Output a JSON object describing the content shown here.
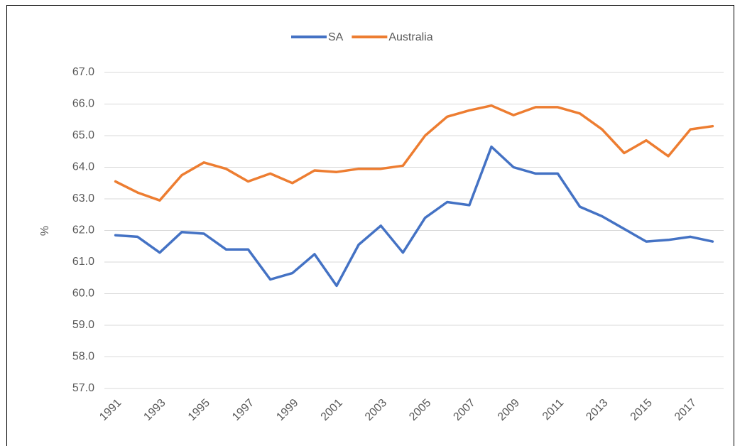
{
  "chart_data": {
    "type": "line",
    "categories": [
      "1991",
      null,
      "1993",
      null,
      "1995",
      null,
      "1997",
      null,
      "1999",
      null,
      "2001",
      null,
      "2003",
      null,
      "2005",
      null,
      "2007",
      null,
      "2009",
      null,
      "2011",
      null,
      "2013",
      null,
      "2015",
      null,
      "2017",
      null
    ],
    "series": [
      {
        "name": "SA",
        "color": "#4472c4",
        "values": [
          61.85,
          61.8,
          61.3,
          61.95,
          61.9,
          61.4,
          61.4,
          60.45,
          60.65,
          61.25,
          60.25,
          61.55,
          62.15,
          61.3,
          62.4,
          62.9,
          62.8,
          64.65,
          64.0,
          63.8,
          63.8,
          62.75,
          62.45,
          62.05,
          61.65,
          61.7,
          61.8,
          61.65
        ]
      },
      {
        "name": "Australia",
        "color": "#ed7d31",
        "values": [
          63.55,
          63.2,
          62.95,
          63.75,
          64.15,
          63.95,
          63.55,
          63.8,
          63.5,
          63.9,
          63.85,
          63.95,
          63.95,
          64.05,
          65.0,
          65.6,
          65.8,
          65.95,
          65.65,
          65.9,
          65.9,
          65.7,
          65.2,
          64.45,
          64.85,
          64.35,
          65.2,
          65.3
        ]
      }
    ],
    "y_label": "%",
    "ylim": [
      57,
      67
    ],
    "yticks": [
      {
        "value": 57,
        "label": "57.0"
      },
      {
        "value": 58,
        "label": "58.0"
      },
      {
        "value": 59,
        "label": "59.0"
      },
      {
        "value": 60,
        "label": "60.0"
      },
      {
        "value": 61,
        "label": "61.0"
      },
      {
        "value": 62,
        "label": "62.0"
      },
      {
        "value": 63,
        "label": "63.0"
      },
      {
        "value": 64,
        "label": "64.0"
      },
      {
        "value": 65,
        "label": "65.0"
      },
      {
        "value": 66,
        "label": "66.0"
      },
      {
        "value": 67,
        "label": "67.0"
      }
    ],
    "grid": true,
    "legend": "top"
  }
}
